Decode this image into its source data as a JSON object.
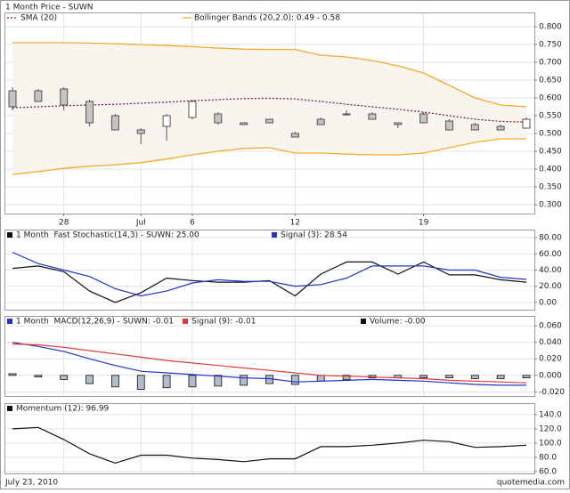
{
  "chart_data": [
    {
      "type": "candlestick",
      "title": "1 Month Price - SUWN",
      "categories": [
        null,
        null,
        "28",
        null,
        null,
        "Jul",
        null,
        "6",
        null,
        null,
        null,
        "12",
        null,
        null,
        null,
        null,
        "19",
        null,
        null,
        null,
        null
      ],
      "open": [
        0.62,
        0.62,
        0.625,
        0.59,
        0.55,
        0.51,
        0.52,
        0.545,
        0.555,
        0.53,
        0.54,
        0.5,
        0.54,
        0.555,
        0.555,
        0.53,
        0.555,
        0.535,
        0.525,
        0.52,
        0.515
      ],
      "high": [
        0.63,
        0.625,
        0.63,
        0.595,
        0.555,
        0.515,
        0.555,
        0.595,
        0.56,
        0.53,
        0.54,
        0.505,
        0.545,
        0.565,
        0.56,
        0.53,
        0.56,
        0.54,
        0.53,
        0.525,
        0.545
      ],
      "low": [
        0.565,
        0.59,
        0.565,
        0.52,
        0.51,
        0.47,
        0.48,
        0.54,
        0.525,
        0.525,
        0.53,
        0.49,
        0.525,
        0.55,
        0.54,
        0.515,
        0.53,
        0.51,
        0.51,
        0.51,
        0.515
      ],
      "close": [
        0.575,
        0.59,
        0.58,
        0.53,
        0.51,
        0.5,
        0.55,
        0.59,
        0.53,
        0.525,
        0.53,
        0.49,
        0.525,
        0.555,
        0.54,
        0.525,
        0.53,
        0.51,
        0.51,
        0.51,
        0.54
      ],
      "up_color": "#ffffff",
      "down_color": "#c4c4c4",
      "candle_edge": "#555555",
      "series": [
        {
          "name": "SMA (20)",
          "color": "#7a1040",
          "dash": true,
          "values": [
            0.572,
            0.575,
            0.578,
            0.58,
            0.582,
            0.585,
            0.588,
            0.592,
            0.595,
            0.598,
            0.599,
            0.597,
            0.59,
            0.582,
            0.575,
            0.568,
            0.56,
            0.55,
            0.54,
            0.534,
            0.532
          ]
        }
      ],
      "bands": {
        "name": "Bollinger Bands (20,2.0): 0.49 - 0.58",
        "color": "#f4aa2a",
        "fill": "#f8f4ee",
        "upper": [
          0.755,
          0.755,
          0.755,
          0.754,
          0.752,
          0.75,
          0.747,
          0.744,
          0.74,
          0.737,
          0.736,
          0.736,
          0.72,
          0.715,
          0.705,
          0.69,
          0.67,
          0.635,
          0.6,
          0.58,
          0.575
        ],
        "lower": [
          0.385,
          0.393,
          0.402,
          0.408,
          0.412,
          0.418,
          0.428,
          0.44,
          0.45,
          0.458,
          0.46,
          0.445,
          0.445,
          0.442,
          0.44,
          0.44,
          0.445,
          0.46,
          0.475,
          0.485,
          0.485
        ]
      },
      "ylim": [
        0.275,
        0.84
      ],
      "yticks": [
        {
          "value": 0.8,
          "label": "0.800"
        },
        {
          "value": 0.75,
          "label": "0.750"
        },
        {
          "value": 0.7,
          "label": "0.700"
        },
        {
          "value": 0.65,
          "label": "0.650"
        },
        {
          "value": 0.6,
          "label": "0.600"
        },
        {
          "value": 0.55,
          "label": "0.550"
        },
        {
          "value": 0.5,
          "label": "0.500"
        },
        {
          "value": 0.45,
          "label": "0.450"
        },
        {
          "value": 0.4,
          "label": "0.400"
        },
        {
          "value": 0.35,
          "label": "0.350"
        },
        {
          "value": 0.3,
          "label": "0.300"
        }
      ],
      "grid": true
    },
    {
      "type": "line",
      "series": [
        {
          "name": "1 Month  Fast Stochastic(14,3) - SUWN: 25.00",
          "color": "#111111",
          "values": [
            42,
            45,
            38,
            14,
            0,
            12,
            30,
            27,
            25,
            25,
            27,
            8,
            35,
            50,
            50,
            35,
            50,
            34,
            34,
            28,
            25
          ]
        },
        {
          "name": "Signal (3): 28.54",
          "color": "#2233cc",
          "values": [
            62,
            48,
            40,
            32,
            17,
            8,
            14,
            24,
            28,
            26,
            26,
            20,
            22,
            30,
            45,
            45,
            45,
            40,
            40,
            31,
            28.54
          ]
        }
      ],
      "ylim": [
        -9,
        90
      ],
      "yticks": [
        {
          "value": 80,
          "label": "80.00"
        },
        {
          "value": 60,
          "label": "60.00"
        },
        {
          "value": 40,
          "label": "40.00"
        },
        {
          "value": 20,
          "label": "20.00"
        },
        {
          "value": 0,
          "label": "0.00"
        }
      ],
      "grid": true
    },
    {
      "type": "line",
      "series": [
        {
          "name": "1 Month  MACD(12,26,9) - SUWN: -0.01",
          "color": "#2233cc",
          "values": [
            0.04,
            0.035,
            0.029,
            0.02,
            0.012,
            0.005,
            0.003,
            0.001,
            -0.001,
            -0.003,
            -0.004,
            -0.008,
            -0.007,
            -0.006,
            -0.005,
            -0.006,
            -0.007,
            -0.009,
            -0.011,
            -0.012,
            -0.012
          ]
        },
        {
          "name": "Signal (9): -0.01",
          "color": "#e03a3a",
          "values": [
            0.038,
            0.037,
            0.034,
            0.03,
            0.026,
            0.022,
            0.018,
            0.015,
            0.012,
            0.009,
            0.006,
            0.003,
            0,
            -0.001,
            -0.002,
            -0.003,
            -0.004,
            -0.006,
            -0.007,
            -0.008,
            -0.009
          ]
        },
        {
          "name": "Volume: -0.00",
          "color": "#111111",
          "type": "bar",
          "bar_fill": "#b4bccc",
          "values": [
            0.002,
            -0.002,
            -0.005,
            -0.01,
            -0.014,
            -0.017,
            -0.015,
            -0.014,
            -0.013,
            -0.012,
            -0.01,
            -0.011,
            -0.007,
            -0.005,
            -0.003,
            -0.003,
            -0.003,
            -0.003,
            -0.004,
            -0.004,
            -0.003
          ]
        }
      ],
      "ylim": [
        -0.025,
        0.072
      ],
      "yticks": [
        {
          "value": 0.06,
          "label": "0.060"
        },
        {
          "value": 0.04,
          "label": "0.040"
        },
        {
          "value": 0.02,
          "label": "0.020"
        },
        {
          "value": 0,
          "label": "0.000"
        },
        {
          "value": -0.02,
          "label": "-0.020"
        }
      ],
      "grid": true
    },
    {
      "type": "line",
      "series": [
        {
          "name": "Momentum (12): 96.99",
          "color": "#111111",
          "values": [
            120,
            122,
            105,
            85,
            72,
            83,
            83,
            79,
            77,
            74,
            78,
            78,
            95,
            95,
            97,
            100,
            104,
            102,
            94,
            95,
            96.99
          ]
        }
      ],
      "ylim": [
        57.5,
        156
      ],
      "yticks": [
        {
          "value": 140,
          "label": "140.0"
        },
        {
          "value": 120,
          "label": "120.0"
        },
        {
          "value": 100,
          "label": "100.0"
        },
        {
          "value": 80,
          "label": "80.0"
        },
        {
          "value": 60,
          "label": "60.0"
        }
      ],
      "grid": true
    }
  ],
  "footer": {
    "date": "July 23, 2010",
    "source": "quotemedia.com"
  }
}
